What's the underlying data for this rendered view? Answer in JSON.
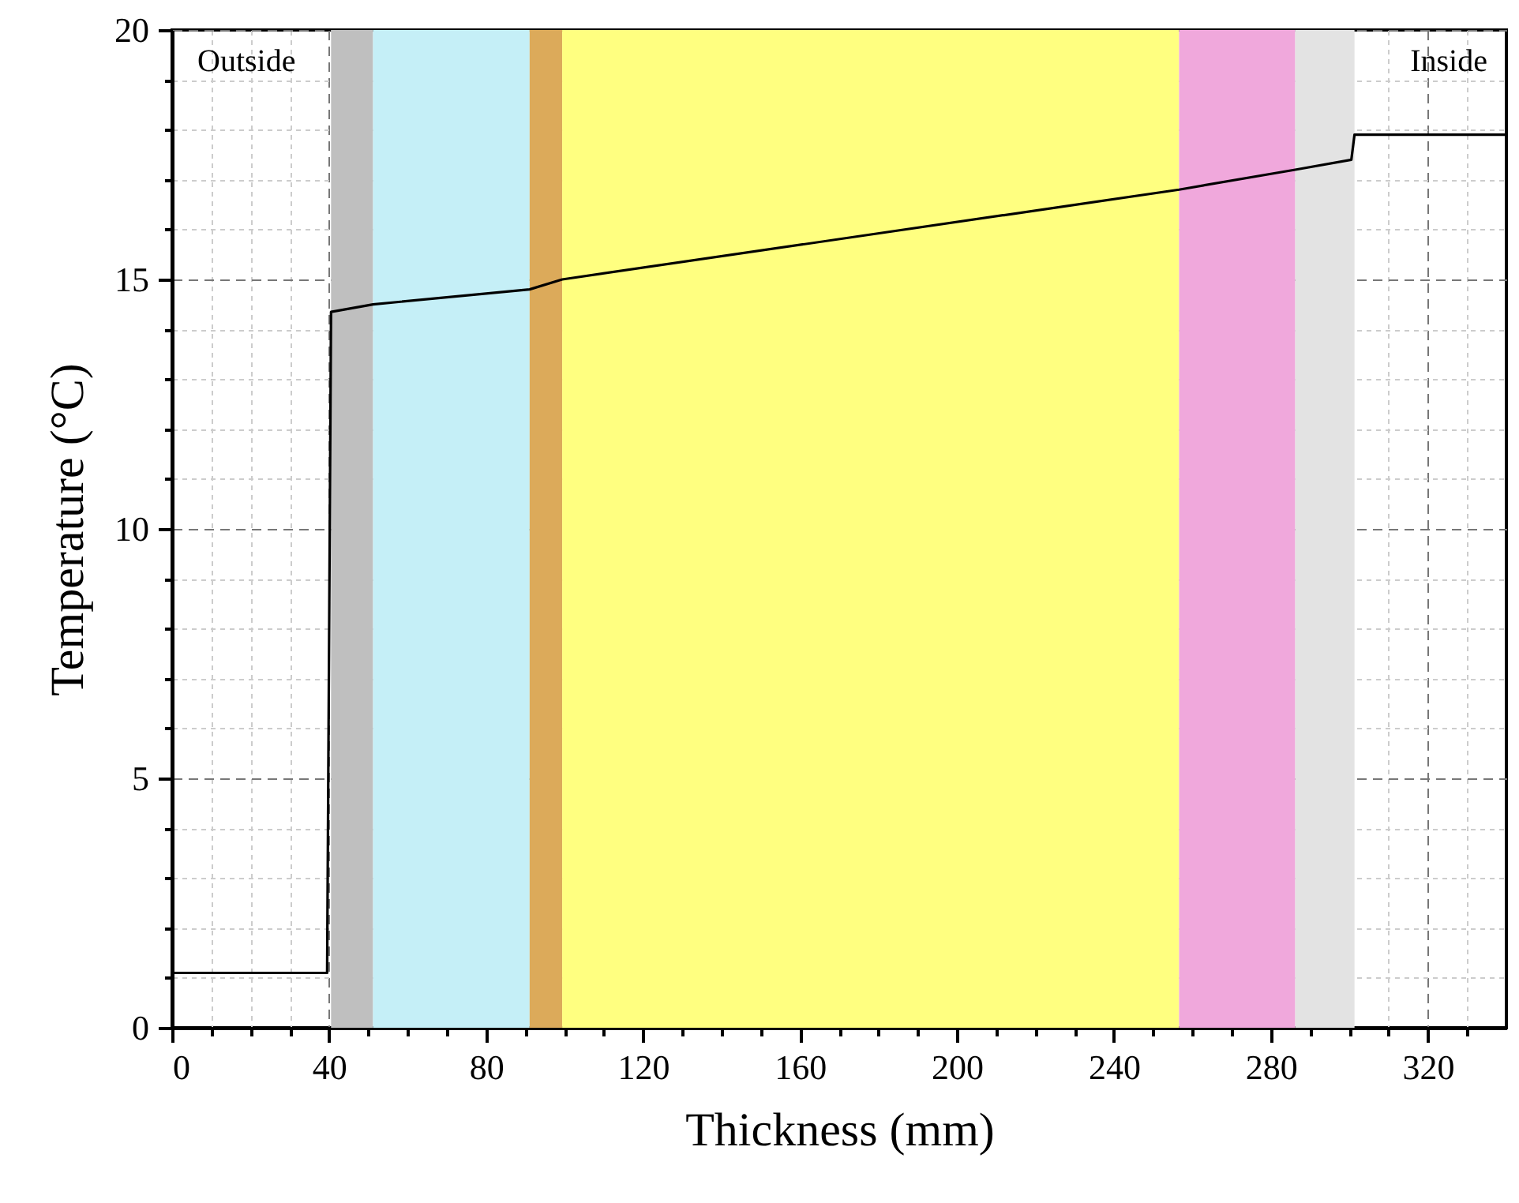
{
  "chart_data": {
    "type": "line",
    "xlabel": "Thickness (mm)",
    "ylabel": "Temperature (°C)",
    "annotations": [
      "Outside",
      "Inside"
    ],
    "series": [
      {
        "color": "#000000",
        "x": [
          0,
          39.5,
          40.5,
          51.2,
          91.1,
          99.4,
          256.6,
          286.2,
          300.5,
          301.3,
          340
        ],
        "values": [
          1.1,
          1.1,
          14.35,
          14.5,
          14.8,
          15.0,
          16.8,
          17.2,
          17.4,
          17.9,
          17.9
        ]
      }
    ],
    "bands": [
      {
        "axis": "x",
        "from": 40.5,
        "to": 51.2,
        "color": "#bfbfbf"
      },
      {
        "axis": "x",
        "from": 51.2,
        "to": 91.1,
        "color": "#c5eff7"
      },
      {
        "axis": "x",
        "from": 91.1,
        "to": 99.4,
        "color": "#dcaa5a"
      },
      {
        "axis": "x",
        "from": 99.4,
        "to": 256.6,
        "color": "#ffff80"
      },
      {
        "axis": "x",
        "from": 256.6,
        "to": 286.2,
        "color": "#f0a8dc"
      },
      {
        "axis": "x",
        "from": 286.2,
        "to": 301.3,
        "color": "#e3e3e3"
      }
    ],
    "xlim": [
      0,
      340
    ],
    "xticks": [
      0,
      {
        "value": 10,
        "label": null
      },
      {
        "value": 20,
        "label": null
      },
      {
        "value": 30,
        "label": null
      },
      40,
      {
        "value": 50,
        "label": null
      },
      {
        "value": 60,
        "label": null
      },
      {
        "value": 70,
        "label": null
      },
      80,
      {
        "value": 90,
        "label": null
      },
      {
        "value": 100,
        "label": null
      },
      {
        "value": 110,
        "label": null
      },
      120,
      {
        "value": 130,
        "label": null
      },
      {
        "value": 140,
        "label": null
      },
      {
        "value": 150,
        "label": null
      },
      160,
      {
        "value": 170,
        "label": null
      },
      {
        "value": 180,
        "label": null
      },
      {
        "value": 190,
        "label": null
      },
      200,
      {
        "value": 210,
        "label": null
      },
      {
        "value": 220,
        "label": null
      },
      {
        "value": 230,
        "label": null
      },
      240,
      {
        "value": 250,
        "label": null
      },
      {
        "value": 260,
        "label": null
      },
      {
        "value": 270,
        "label": null
      },
      280,
      {
        "value": 290,
        "label": null
      },
      {
        "value": 300,
        "label": null
      },
      {
        "value": 310,
        "label": null
      },
      320,
      {
        "value": 330,
        "label": null
      }
    ],
    "ylim": [
      0,
      20
    ],
    "yticks": [
      0,
      {
        "value": 1,
        "label": null
      },
      {
        "value": 2,
        "label": null
      },
      {
        "value": 3,
        "label": null
      },
      {
        "value": 4,
        "label": null
      },
      5,
      {
        "value": 6,
        "label": null
      },
      {
        "value": 7,
        "label": null
      },
      {
        "value": 8,
        "label": null
      },
      {
        "value": 9,
        "label": null
      },
      10,
      {
        "value": 11,
        "label": null
      },
      {
        "value": 12,
        "label": null
      },
      {
        "value": 13,
        "label": null
      },
      {
        "value": 14,
        "label": null
      },
      15,
      {
        "value": 16,
        "label": null
      },
      {
        "value": 17,
        "label": null
      },
      {
        "value": 18,
        "label": null
      },
      {
        "value": 19,
        "label": null
      },
      20
    ],
    "grid": true,
    "marker": "none",
    "line_style": "solid"
  }
}
